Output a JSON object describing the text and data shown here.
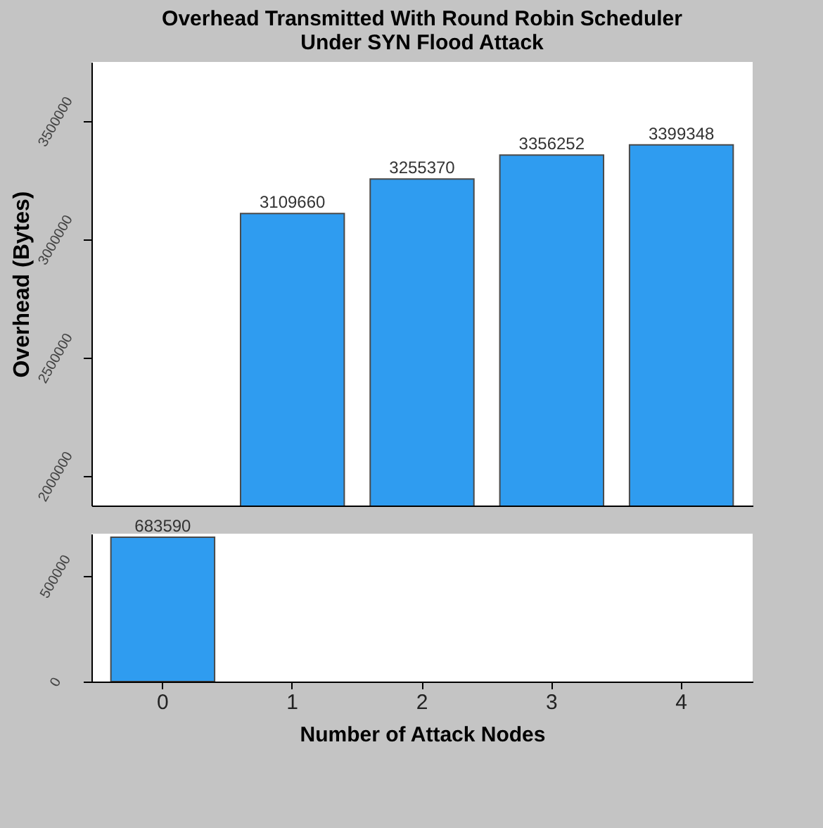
{
  "chart_data": [
    {
      "type": "bar",
      "title": "Overhead Transmitted  With Round Robin Scheduler\nUnder SYN Flood Attack",
      "ylabel": "Overhead (Bytes)",
      "categories": [
        "0",
        "1",
        "2",
        "3",
        "4"
      ],
      "series": [
        {
          "color": "#2f9cf0",
          "values": [
            null,
            3109660,
            3255370,
            3356252,
            3399348
          ],
          "value_labels": [
            null,
            "3109660",
            "3255370",
            "3356252",
            "3399348"
          ]
        }
      ],
      "ylim": [
        1875000,
        3750000
      ],
      "yticks": [
        2000000,
        2500000,
        3000000,
        3500000
      ],
      "tick_labels": "y"
    },
    {
      "type": "bar",
      "xlabel": "Number of Attack Nodes",
      "categories": [
        "0",
        "1",
        "2",
        "3",
        "4"
      ],
      "series": [
        {
          "color": "#2f9cf0",
          "values": [
            683590,
            null,
            null,
            null,
            null
          ],
          "value_labels": [
            "683590",
            null,
            null,
            null,
            null
          ]
        }
      ],
      "ylim": [
        0,
        700000
      ],
      "yticks": [
        0,
        500000
      ]
    }
  ]
}
